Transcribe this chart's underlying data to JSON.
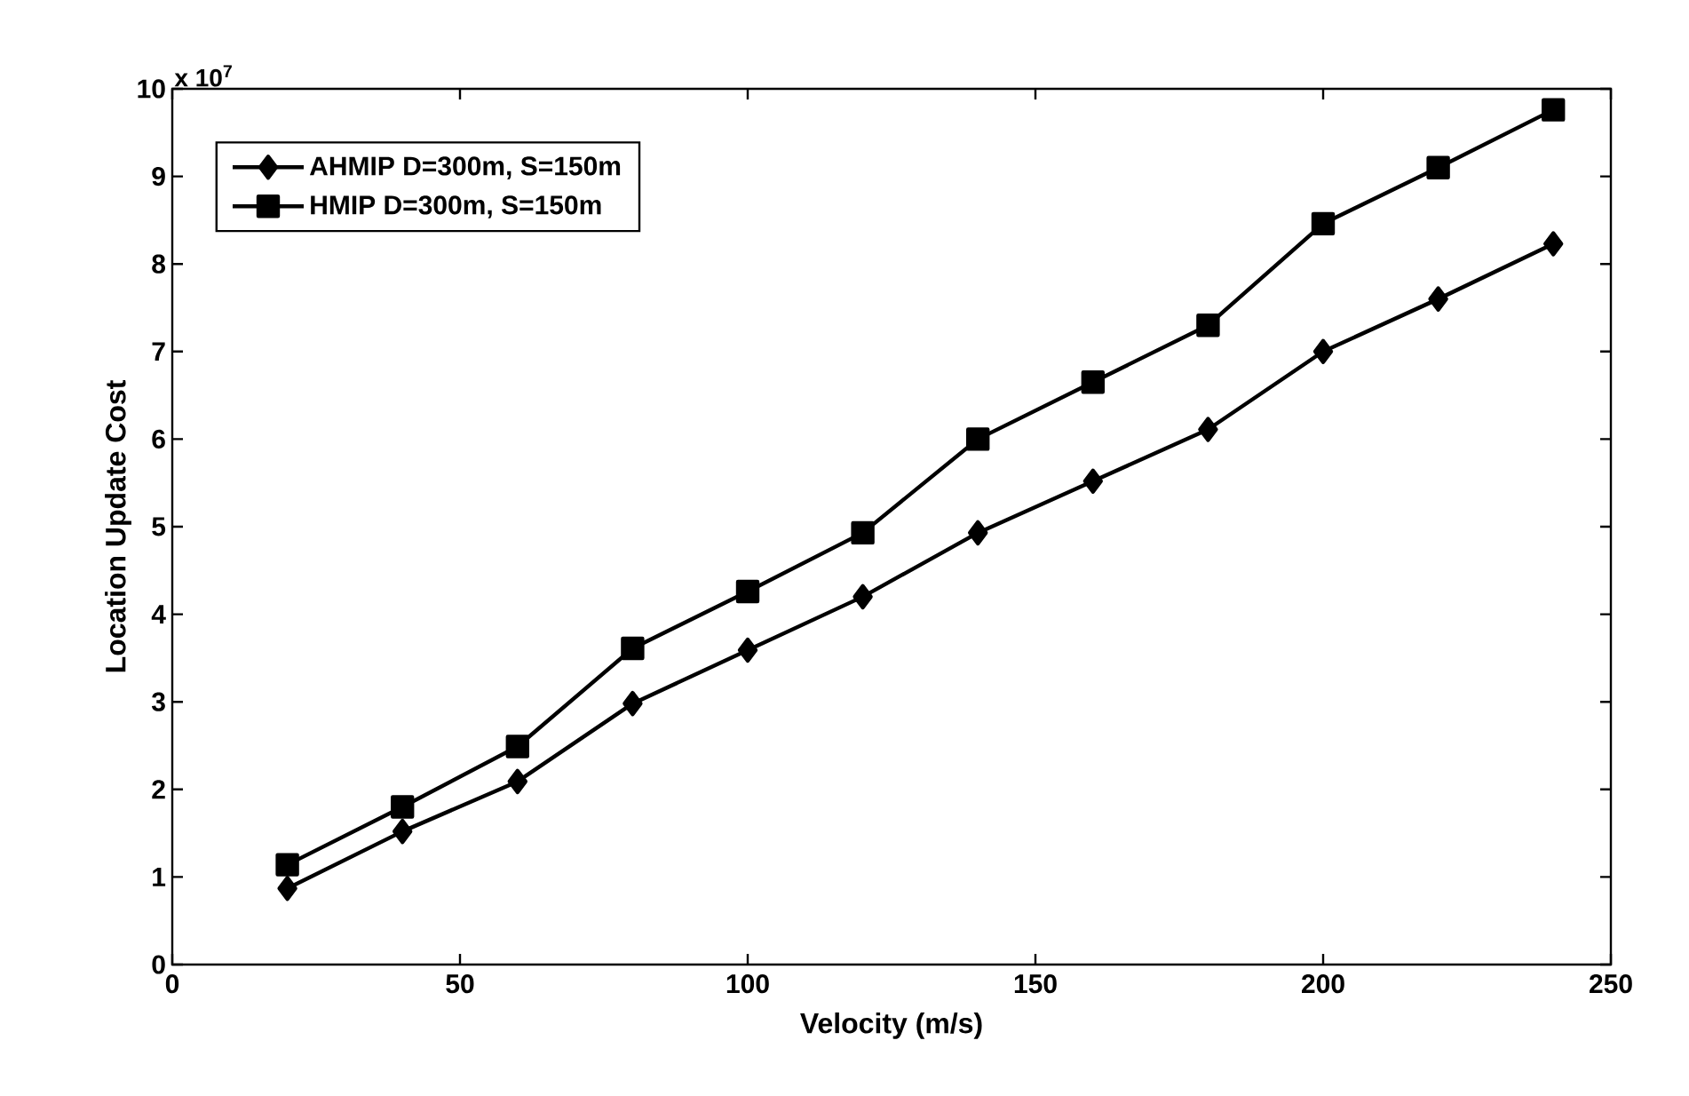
{
  "chart_data": {
    "type": "line",
    "xlabel": "Velocity (m/s)",
    "ylabel": "Location Update Cost",
    "x": [
      20,
      40,
      60,
      80,
      100,
      120,
      140,
      160,
      180,
      200,
      220,
      240
    ],
    "series": [
      {
        "name": "AHMIP D=300m, S=150m",
        "color": "#000000",
        "marker": "diamond",
        "values": [
          0.87,
          1.52,
          2.09,
          2.98,
          3.59,
          4.2,
          4.93,
          5.52,
          6.11,
          7.0,
          7.6,
          8.23
        ]
      },
      {
        "name": "HMIP D=300m, S=150m",
        "color": "#000000",
        "marker": "square",
        "values": [
          1.14,
          1.8,
          2.49,
          3.61,
          4.26,
          4.93,
          6.0,
          6.65,
          7.3,
          8.46,
          9.1,
          9.76
        ]
      }
    ],
    "xlim": [
      0,
      250
    ],
    "ylim": [
      0,
      10
    ],
    "xticks": [
      0,
      50,
      100,
      150,
      200,
      250
    ],
    "yticks": [
      0,
      1,
      2,
      3,
      4,
      5,
      6,
      7,
      8,
      9,
      10
    ],
    "legend": "top left",
    "line_style": "solid",
    "annotations": [
      "x 10$^{7}$"
    ]
  }
}
